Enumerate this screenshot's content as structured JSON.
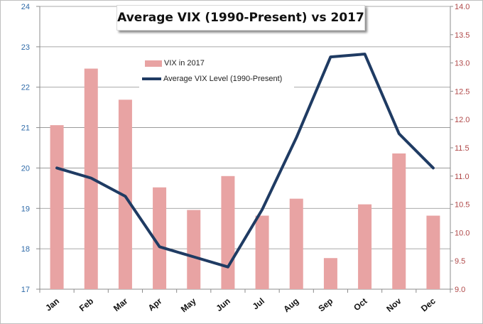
{
  "chart_data": {
    "type": "bar",
    "title": "Average VIX (1990-Present) vs 2017",
    "categories": [
      "Jan",
      "Feb",
      "Mar",
      "Apr",
      "May",
      "Jun",
      "Jul",
      "Aug",
      "Sep",
      "Oct",
      "Nov",
      "Dec"
    ],
    "series": [
      {
        "name": "VIX in 2017",
        "type": "bar",
        "axis": "right",
        "color": "#e8a3a3",
        "values": [
          11.9,
          12.9,
          12.35,
          10.8,
          10.4,
          11.0,
          10.3,
          10.6,
          9.55,
          10.5,
          11.4,
          10.3
        ]
      },
      {
        "name": "Average VIX Level (1990-Present)",
        "type": "line",
        "axis": "left",
        "color": "#1f3b63",
        "values": [
          20.0,
          19.75,
          19.3,
          18.05,
          17.8,
          17.55,
          18.97,
          20.75,
          22.75,
          22.82,
          20.85,
          20.0
        ]
      }
    ],
    "y_left": {
      "min": 17,
      "max": 24,
      "step": 1,
      "ticks": [
        "17",
        "18",
        "19",
        "20",
        "21",
        "22",
        "23",
        "24"
      ],
      "color": "#2e6aa8"
    },
    "y_right": {
      "min": 9,
      "max": 14,
      "step": 0.5,
      "ticks": [
        "9.0",
        "9.5",
        "10.0",
        "10.5",
        "11.0",
        "11.5",
        "12.0",
        "12.5",
        "13.0",
        "13.5",
        "14.0"
      ],
      "color": "#b04848"
    },
    "grid": true,
    "legend_position": "top-left"
  }
}
